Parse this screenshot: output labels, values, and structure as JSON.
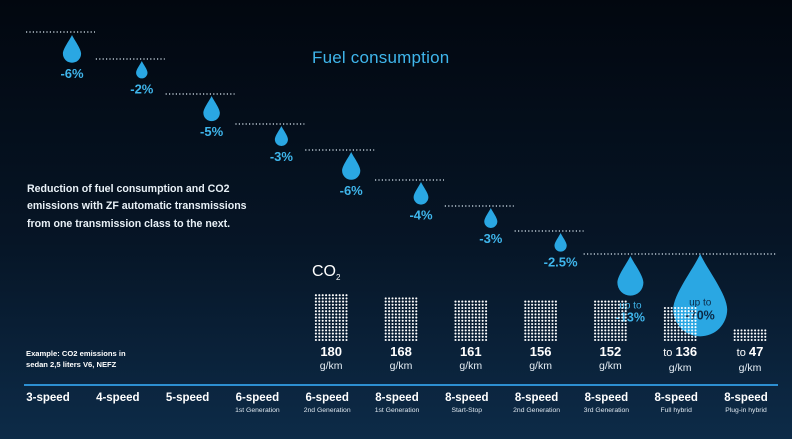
{
  "chart_data": {
    "type": "waterfall",
    "title": "Fuel consumption",
    "description": "Reduction of fuel consumption and CO2 emissions with ZF automatic transmissions from one transmission class to the next.",
    "co2_label": "CO",
    "co2_sub": "2",
    "example_note": "Example: CO2 emissions in sedan 2,5 liters V6, NEFZ",
    "unit": "g/km",
    "categories": [
      {
        "name": "3-speed",
        "sub": ""
      },
      {
        "name": "4-speed",
        "sub": ""
      },
      {
        "name": "5-speed",
        "sub": ""
      },
      {
        "name": "6-speed",
        "sub": "1st Generation"
      },
      {
        "name": "6-speed",
        "sub": "2nd Generation"
      },
      {
        "name": "8-speed",
        "sub": "1st Generation"
      },
      {
        "name": "8-speed",
        "sub": "Start-Stop"
      },
      {
        "name": "8-speed",
        "sub": "2nd Generation"
      },
      {
        "name": "8-speed",
        "sub": "3rd Generation"
      },
      {
        "name": "8-speed",
        "sub": "Full hybrid"
      },
      {
        "name": "8-speed",
        "sub": "Plug-in hybrid"
      }
    ],
    "fuel_reductions": [
      {
        "label": "-6%",
        "value": -6
      },
      {
        "label": "-2%",
        "value": -2
      },
      {
        "label": "-5%",
        "value": -5
      },
      {
        "label": "-3%",
        "value": -3
      },
      {
        "label": "-6%",
        "value": -6
      },
      {
        "label": "-4%",
        "value": -4
      },
      {
        "label": "-3%",
        "value": -3
      },
      {
        "label": "-2.5%",
        "value": -2.5
      },
      {
        "label": "-13%",
        "prefix": "up to",
        "value": -13
      },
      {
        "label": "-70%",
        "prefix": "up to",
        "value": -70
      }
    ],
    "co2_values": [
      {
        "category_index": 4,
        "value": 180,
        "prefix": ""
      },
      {
        "category_index": 5,
        "value": 168,
        "prefix": ""
      },
      {
        "category_index": 6,
        "value": 161,
        "prefix": ""
      },
      {
        "category_index": 7,
        "value": 156,
        "prefix": ""
      },
      {
        "category_index": 8,
        "value": 152,
        "prefix": ""
      },
      {
        "category_index": 9,
        "value": 136,
        "prefix": "to"
      },
      {
        "category_index": 10,
        "value": 47,
        "prefix": "to"
      }
    ],
    "colors": {
      "accent": "#3fb6ec",
      "drop": "#2aa7e3",
      "baseline": "#2d8fd1",
      "dots": "#ffffff"
    }
  }
}
